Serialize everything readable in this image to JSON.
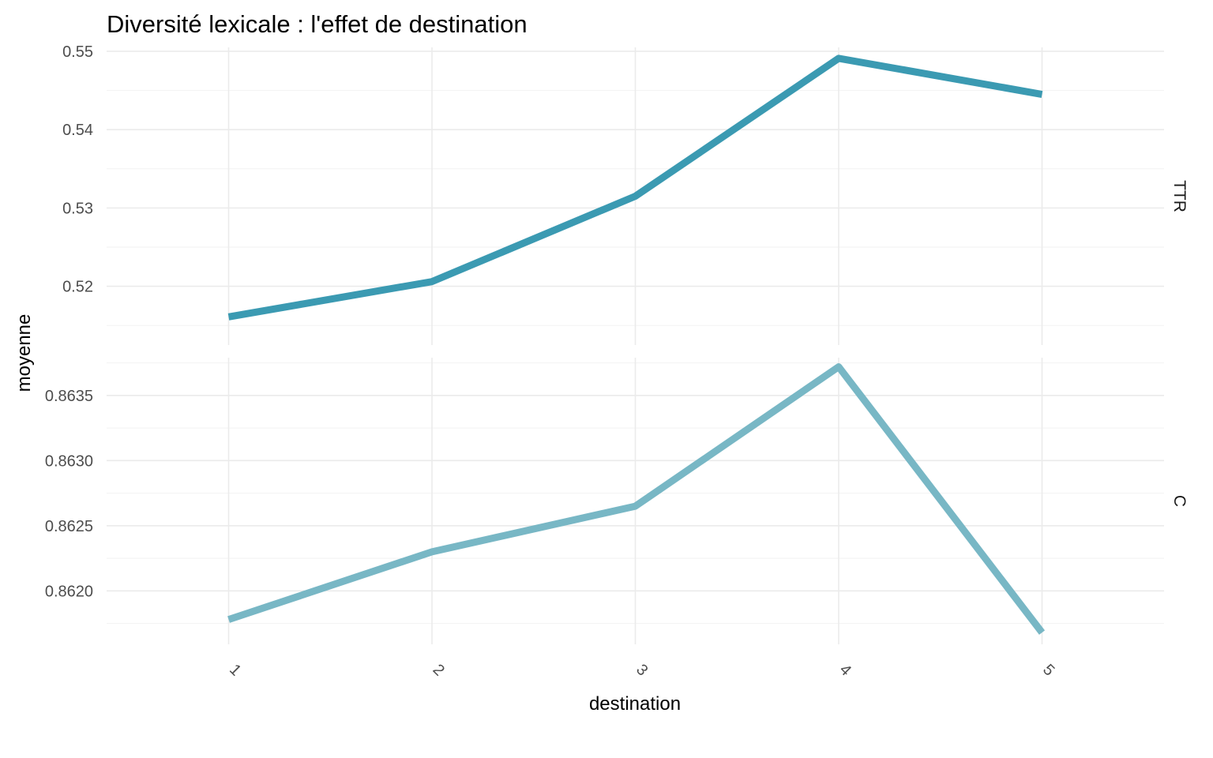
{
  "chart_data": {
    "type": "line",
    "title": "Diversité lexicale : l'effet de destination",
    "xlabel": "destination",
    "ylabel": "moyenne",
    "x": [
      "1",
      "2",
      "3",
      "4",
      "5"
    ],
    "grid": true,
    "facets": [
      {
        "label": "TTR",
        "color": "#3b9ab2",
        "values": [
          0.5161,
          0.5206,
          0.5315,
          0.5491,
          0.5445
        ],
        "ylim": [
          0.5125,
          0.5505
        ],
        "yticks": [
          0.52,
          0.53,
          0.54,
          0.55
        ],
        "ytick_labels": [
          "0.52",
          "0.53",
          "0.54",
          "0.55"
        ]
      },
      {
        "label": "C",
        "color": "#78b7c5",
        "values": [
          0.86178,
          0.8623,
          0.86265,
          0.86372,
          0.86168
        ],
        "ylim": [
          0.86159,
          0.86379
        ],
        "yticks": [
          0.862,
          0.8625,
          0.863,
          0.8635
        ],
        "ytick_labels": [
          "0.8620",
          "0.8625",
          "0.8630",
          "0.8635"
        ]
      }
    ]
  }
}
